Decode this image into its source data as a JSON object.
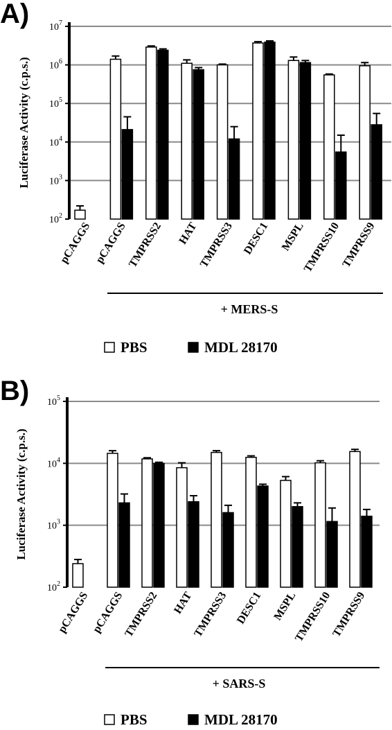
{
  "chart_data": [
    {
      "panel": "A)",
      "type": "bar",
      "ylabel": "Luciferase Activity (c.p.s.)",
      "yscale": "log",
      "ylim": [
        100,
        10000000
      ],
      "ytick_exponents": [
        "2",
        "3",
        "4",
        "5",
        "6",
        "7"
      ],
      "grid": true,
      "categories": [
        "pCAGGS",
        "pCAGGS",
        "TMPRSS2",
        "HAT",
        "TMPRSS3",
        "DESC1",
        "MSPL",
        "TMPRSS10",
        "TMPRSS9"
      ],
      "series": [
        {
          "name": "PBS",
          "color": "#ffffff",
          "values": [
            170,
            1400000,
            2900000,
            1100000,
            1000000,
            3700000,
            1300000,
            550000,
            950000
          ],
          "errors": [
            220,
            1700000,
            3100000,
            1350000,
            1050000,
            4000000,
            1600000,
            580000,
            1150000
          ]
        },
        {
          "name": "MDL 28170",
          "color": "#000000",
          "values": [
            null,
            21000,
            2400000,
            750000,
            12000,
            3900000,
            1150000,
            5500,
            28000
          ],
          "errors": [
            null,
            45000,
            2600000,
            850000,
            25000,
            4200000,
            1300000,
            15000,
            55000
          ]
        }
      ],
      "group_annotation": "+ MERS-S",
      "legend_placement": "bottom"
    },
    {
      "panel": "B)",
      "type": "bar",
      "ylabel": "Luciferase Activity (c.p.s.)",
      "yscale": "log",
      "ylim": [
        100,
        100000
      ],
      "ytick_exponents": [
        "2",
        "3",
        "4",
        "5"
      ],
      "grid": true,
      "categories": [
        "pCAGGS",
        "pCAGGS",
        "TMPRSS2",
        "HAT",
        "TMPRSS3",
        "DESC1",
        "MSPL",
        "TMPRSS10",
        "TMPRSS9"
      ],
      "series": [
        {
          "name": "PBS",
          "color": "#ffffff",
          "values": [
            240,
            14500,
            11800,
            8500,
            15000,
            12500,
            5300,
            10200,
            15500
          ],
          "errors": [
            280,
            16000,
            12300,
            10200,
            16000,
            13200,
            6100,
            11000,
            16800
          ]
        },
        {
          "name": "MDL 28170",
          "color": "#000000",
          "values": [
            null,
            2300,
            10000,
            2400,
            1600,
            4300,
            2000,
            1150,
            1400
          ],
          "errors": [
            null,
            3200,
            10400,
            3000,
            2100,
            4600,
            2300,
            1900,
            1800
          ]
        }
      ],
      "group_annotation": "+ SARS-S",
      "legend_placement": "bottom"
    }
  ]
}
